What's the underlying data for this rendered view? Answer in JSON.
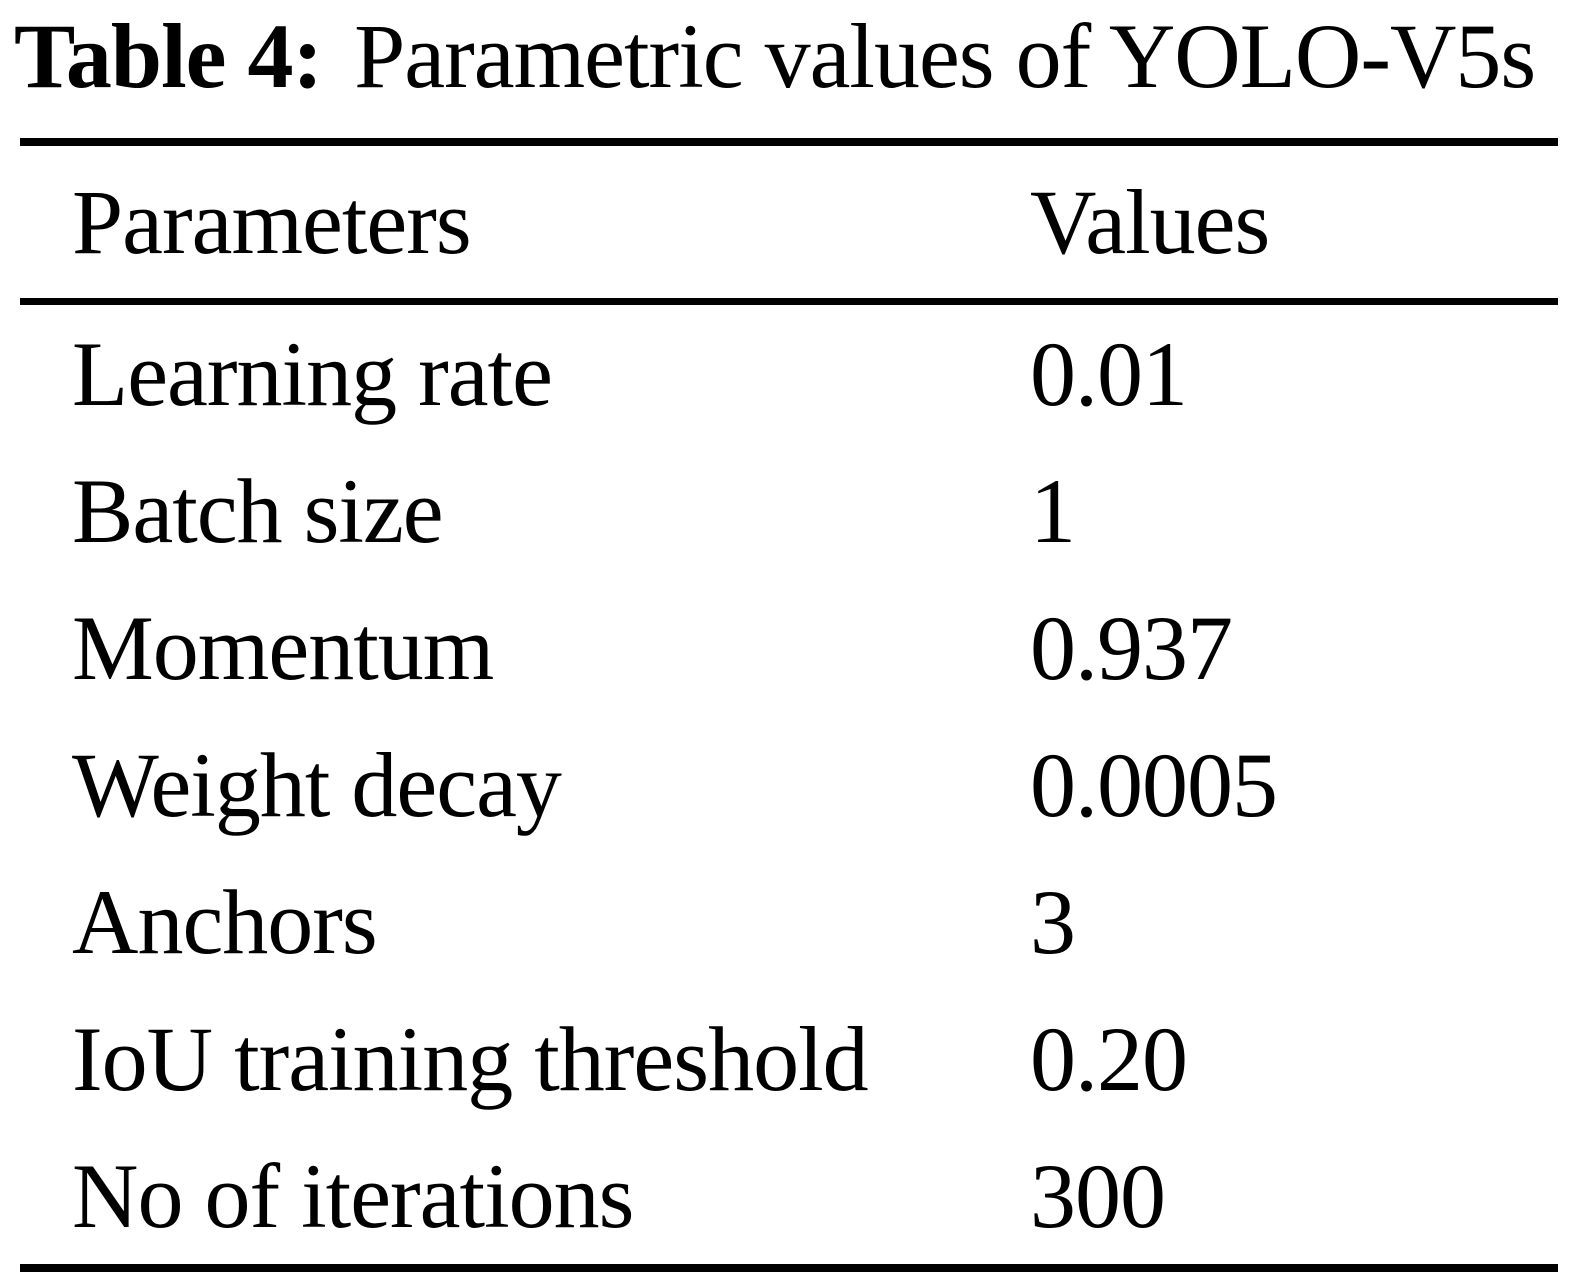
{
  "table": {
    "title_label": "Table 4:",
    "title_text": "Parametric values of YOLO-V5s",
    "columns": [
      "Parameters",
      "Values"
    ],
    "rows": [
      {
        "parameter": "Learning rate",
        "value": "0.01"
      },
      {
        "parameter": "Batch size",
        "value": "1"
      },
      {
        "parameter": "Momentum",
        "value": "0.937"
      },
      {
        "parameter": "Weight decay",
        "value": "0.0005"
      },
      {
        "parameter": "Anchors",
        "value": "3"
      },
      {
        "parameter": "IoU training threshold",
        "value": "0.20"
      },
      {
        "parameter": "No of iterations",
        "value": "300"
      }
    ]
  },
  "colors": {
    "background": "#ffffff",
    "text": "#000000",
    "rule": "#000000"
  }
}
